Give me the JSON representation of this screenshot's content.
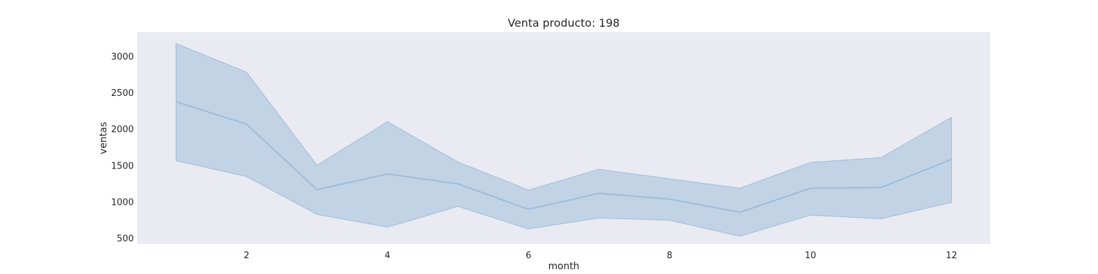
{
  "chart_data": {
    "type": "line",
    "title": "Venta producto: 198",
    "xlabel": "month",
    "ylabel": "ventas",
    "xlim": [
      0.45,
      12.55
    ],
    "ylim": [
      420,
      3330
    ],
    "xticks": [
      2,
      4,
      6,
      8,
      10,
      12
    ],
    "yticks": [
      500,
      1000,
      1500,
      2000,
      2500,
      3000
    ],
    "grid": false,
    "legend": "none",
    "colors": {
      "plot_bg": "#eaeaf2",
      "band": "#c2d3e5",
      "line": "#9ebcd8"
    },
    "series": [
      {
        "x": [
          1,
          2,
          3,
          4,
          5,
          6,
          7,
          8,
          9,
          10,
          11,
          12
        ],
        "y": [
          2375,
          2065,
          1165,
          1380,
          1245,
          895,
          1115,
          1035,
          855,
          1185,
          1195,
          1580
        ],
        "lower": [
          1565,
          1345,
          825,
          650,
          935,
          625,
          775,
          745,
          525,
          815,
          765,
          990
        ],
        "upper": [
          3175,
          2780,
          1500,
          2100,
          1545,
          1160,
          1445,
          1315,
          1185,
          1540,
          1605,
          2160
        ]
      }
    ]
  }
}
